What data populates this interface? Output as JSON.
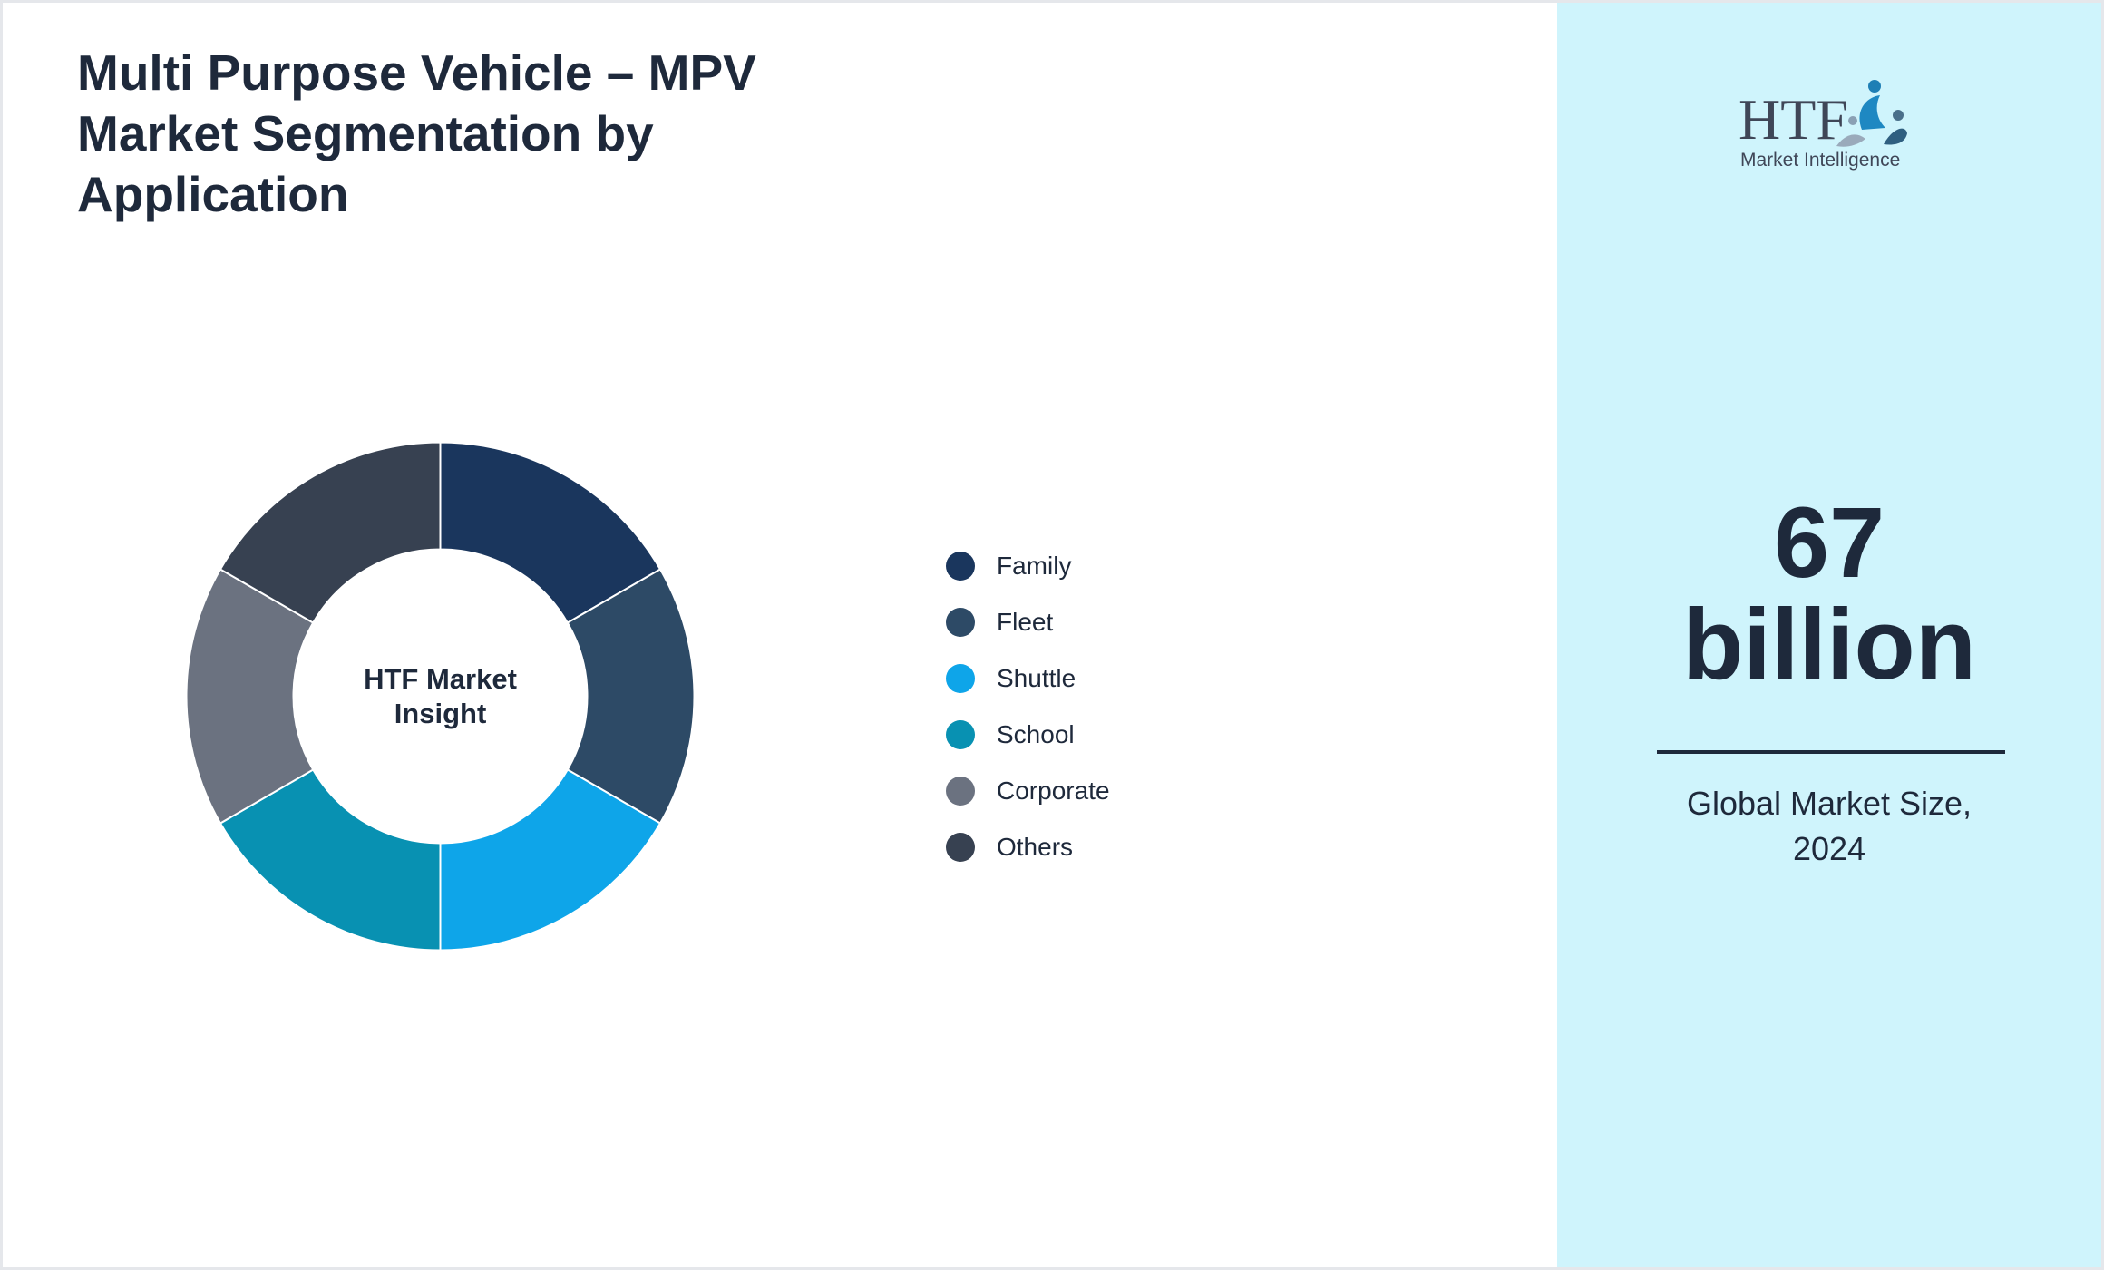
{
  "title": "Multi Purpose Vehicle – MPV Market Segmentation by Application",
  "chart_data": {
    "type": "pie",
    "variant": "donut",
    "center_label": [
      "HTF Market",
      "Insight"
    ],
    "categories": [
      "Family",
      "Fleet",
      "Shuttle",
      "School",
      "Corporate",
      "Others"
    ],
    "values": [
      16.67,
      16.67,
      16.67,
      16.67,
      16.67,
      16.67
    ],
    "colors": [
      "#1a365d",
      "#2d4a66",
      "#0ea5e9",
      "#0891b2",
      "#6b7280",
      "#374151"
    ],
    "legend_position": "right"
  },
  "sidebar": {
    "logo_letters": "HTF",
    "logo_tagline": "Market Intelligence",
    "market_size_value": "67",
    "market_size_unit": "billion",
    "market_size_caption_line1": "Global Market Size,",
    "market_size_caption_line2": "2024"
  },
  "colors": {
    "sidebar_background": "#cff4fc",
    "text": "#1e293b"
  }
}
